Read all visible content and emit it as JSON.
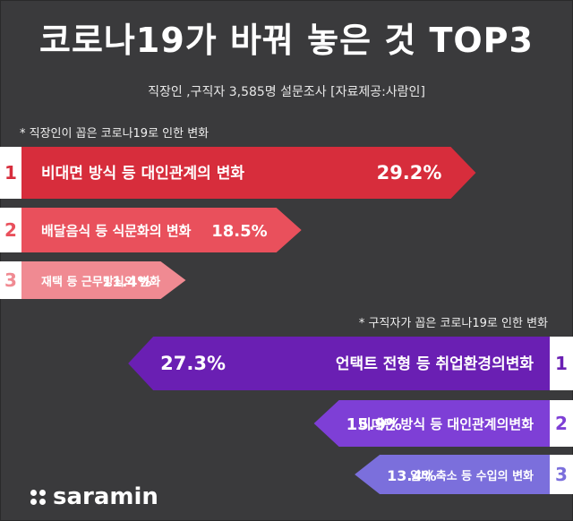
{
  "title": "코로나19가 바꿔 놓은 것 TOP3",
  "subtitle": "직장인 ,구직자 3,585명 설문조사  [자료제공:사람인]",
  "brand": "saramin",
  "colors": {
    "background": "#3a3a3c",
    "employee_bars": [
      "#d72d3c",
      "#e9505c",
      "#f08a92"
    ],
    "jobseeker_bars": [
      "#6a1fb3",
      "#7e3fd6",
      "#7b6fdc"
    ]
  },
  "chart_data": [
    {
      "type": "bar",
      "title": "* 직장인이 꼽은 코로나19로 인한 변화",
      "ranks": [
        "1",
        "2",
        "3"
      ],
      "categories": [
        "비대면 방식 등 대인관계의 변화",
        "배달음식 등 식문화의 변화",
        "재택 등 근무방식의 변화"
      ],
      "values": [
        29.2,
        18.5,
        11.4
      ],
      "value_labels": [
        "29.2%",
        "18.5%",
        "11.4%"
      ],
      "orientation": "horizontal",
      "direction": "left-to-right"
    },
    {
      "type": "bar",
      "title": "* 구직자가 꼽은 코로나19로 인한 변화",
      "ranks": [
        "1",
        "2",
        "3"
      ],
      "categories": [
        "언택트 전형 등 취업환경의변화",
        "비대면 방식 등 대인관계의변화",
        "알바 축소 등 수입의 변화"
      ],
      "values": [
        27.3,
        15.9,
        13.4
      ],
      "value_labels": [
        "27.3%",
        "15.9%",
        "13.4%"
      ],
      "orientation": "horizontal",
      "direction": "right-to-left"
    }
  ]
}
